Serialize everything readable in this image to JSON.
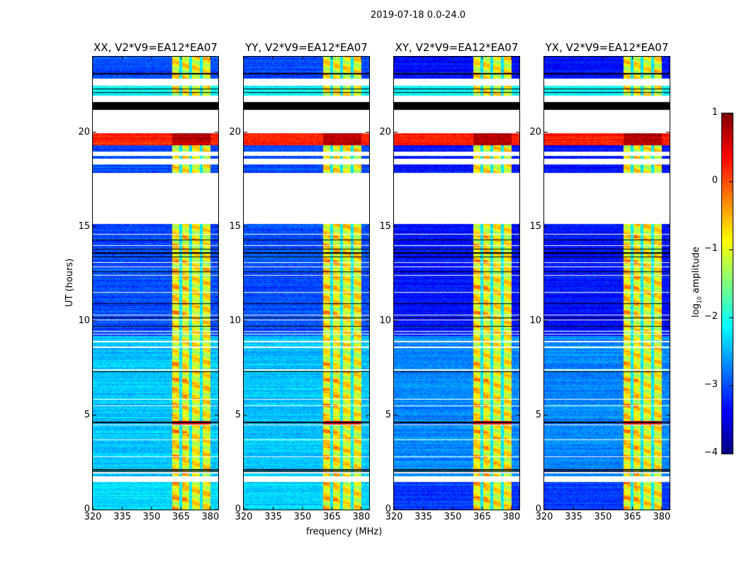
{
  "chart_data": {
    "type": "heatmap",
    "title": "2019-07-18 0.0-24.0",
    "xlabel": "frequency (MHz)",
    "ylabel": "UT (hours)",
    "xlim": [
      320,
      384
    ],
    "ylim": [
      0,
      24
    ],
    "xticks": [
      "320",
      "335",
      "350",
      "365",
      "380"
    ],
    "xtick_values": [
      320,
      335,
      350,
      365,
      380
    ],
    "yticks": [
      "0",
      "5",
      "10",
      "15",
      "20"
    ],
    "ytick_values": [
      0,
      5,
      10,
      15,
      20
    ],
    "panels": [
      {
        "title": "XX, V2*V9=EA12*EA07",
        "background_level": -2.7,
        "low_segment_level": -2.3
      },
      {
        "title": "YY, V2*V9=EA12*EA07",
        "background_level": -2.7,
        "low_segment_level": -2.3
      },
      {
        "title": "XY, V2*V9=EA12*EA07",
        "background_level": -3.0,
        "low_segment_level": -3.1
      },
      {
        "title": "YX, V2*V9=EA12*EA07",
        "background_level": -3.0,
        "low_segment_level": -3.1
      }
    ],
    "rfi_band_mhz": [
      360.5,
      380.0
    ],
    "rfi_band_level": -0.9,
    "band_gap_channels_mhz": [
      364.8,
      369.9,
      375.3
    ],
    "flagged_hours": [
      [
        22.45,
        22.85
      ],
      [
        21.6,
        21.95
      ],
      [
        19.95,
        21.2
      ],
      [
        18.75,
        18.95
      ],
      [
        18.3,
        18.6
      ],
      [
        15.15,
        17.85
      ],
      [
        1.45,
        1.75
      ]
    ],
    "zero_hours": [
      [
        21.2,
        21.6
      ]
    ],
    "strong_rfi_hours": [
      [
        19.3,
        19.95
      ]
    ],
    "colorbar": {
      "label_prefix": "log",
      "label_sub": "10",
      "label_suffix": " amplitude",
      "range": [
        -4,
        1
      ],
      "ticks": [
        "−4",
        "−3",
        "−2",
        "−1",
        "0",
        "1"
      ],
      "tick_values": [
        -4,
        -3,
        -2,
        -1,
        0,
        1
      ],
      "colormap": "jet"
    }
  }
}
